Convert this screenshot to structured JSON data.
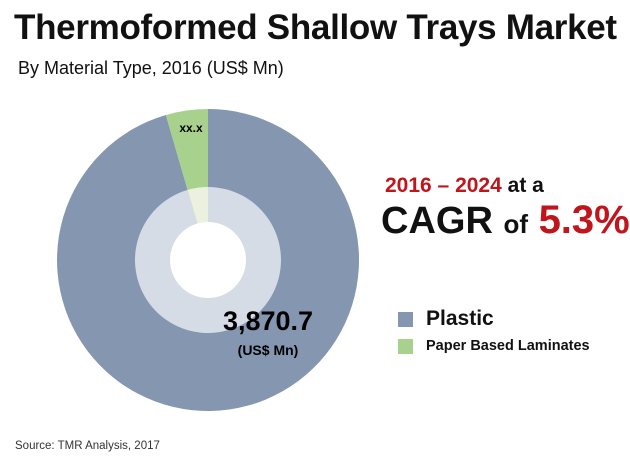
{
  "chart_data": {
    "type": "pie",
    "title": "Thermoformed Shallow Trays Market",
    "subtitle": "By Material Type, 2016 (US$ Mn)",
    "unit": "US$ Mn",
    "slices": [
      {
        "name": "Plastic",
        "share_percent": 95.5,
        "color": "#8496b0",
        "label": "3,870.7",
        "sublabel": "(US$ Mn)"
      },
      {
        "name": "Paper Based Laminates",
        "share_percent": 4.5,
        "color": "#a9d18e",
        "label": "xx.x"
      }
    ],
    "inner_ring_color": "#d6dce5",
    "legend_position": "right",
    "annotation": {
      "years": "2016 – 2024",
      "at_a": "at a",
      "cagr": "CAGR",
      "of": "of",
      "value": "5.3%"
    },
    "source": "Source: TMR Analysis, 2017"
  }
}
